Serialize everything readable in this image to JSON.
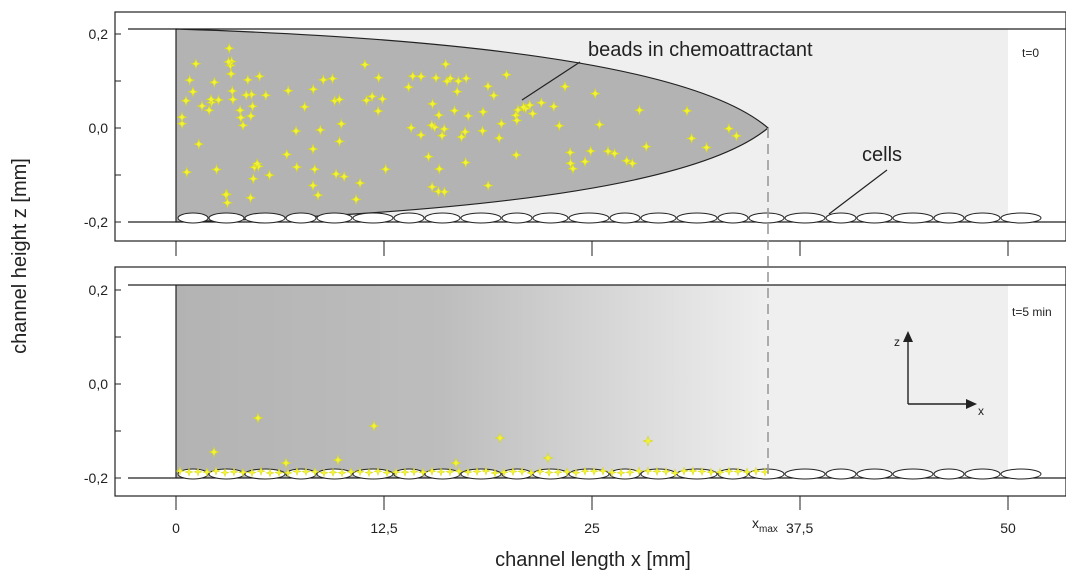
{
  "chart_data": {
    "type": "diagram",
    "ylabel": "channel height z [mm]",
    "xlabel": "channel length x [mm]",
    "y_ticks": [
      "0,2",
      "0,0",
      "-0,2"
    ],
    "x_ticks": [
      "0",
      "12,5",
      "25",
      "37,5",
      "50"
    ],
    "x_ticks_values": [
      0,
      12.5,
      25,
      37.5,
      50
    ],
    "xlim": [
      0,
      50
    ],
    "zlim": [
      -0.2,
      0.2
    ],
    "xmax_label": "x",
    "xmax_subscript": "max",
    "xmax_value": 35.5,
    "panels": [
      {
        "time_label": "t=0",
        "annotations": [
          "beads in chemoattractant",
          "cells"
        ],
        "fluid_front": "parabolic",
        "beads": "distributed"
      },
      {
        "time_label": "t=5 min",
        "fluid_front": "gradient",
        "beads": "settled",
        "axes_glyph": {
          "z_label": "z",
          "x_label": "x"
        }
      }
    ]
  },
  "colors": {
    "fluid_dark": "#b3b3b3",
    "channel_light": "#efefef",
    "bead": "#f2f236",
    "cell_fill": "#ffffff",
    "line": "#222222"
  }
}
